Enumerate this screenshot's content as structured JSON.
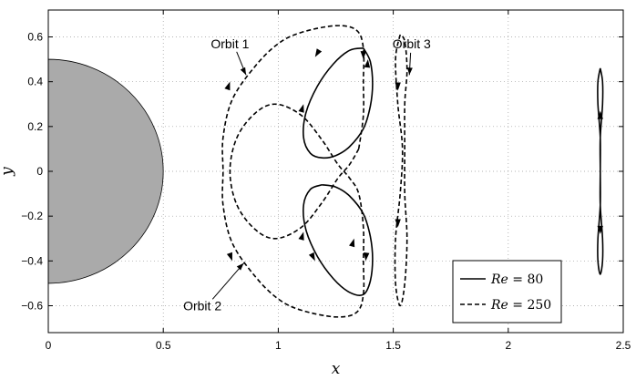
{
  "chart_data": {
    "type": "line",
    "xlabel": "x",
    "ylabel": "y",
    "xlim": [
      0,
      2.5
    ],
    "ylim": [
      -0.72,
      0.72
    ],
    "xticks": [
      "0",
      "0.5",
      "1",
      "1.5",
      "2",
      "2.5"
    ],
    "yticks": [
      "0.6",
      "0.4",
      "0.2",
      "0",
      "-0.2",
      "-0.4",
      "-0.6"
    ],
    "grid": true,
    "obstacle": {
      "center": [
        0,
        0
      ],
      "radius": 0.5,
      "fill": "#aaaaaa"
    },
    "legend": {
      "placement": "bottom-right",
      "entries": [
        {
          "style": "solid",
          "prefix": "Re",
          "value": " = 80"
        },
        {
          "style": "dashed",
          "prefix": "Re",
          "value": " = 250"
        }
      ]
    },
    "annotations": [
      {
        "text": "Orbit 1",
        "label_at": [
          0.79,
          0.57
        ],
        "arrow_to": [
          0.86,
          0.43
        ]
      },
      {
        "text": "Orbit 2",
        "label_at": [
          0.67,
          -0.6
        ],
        "arrow_to": [
          0.85,
          -0.41
        ]
      },
      {
        "text": "Orbit 3",
        "label_at": [
          1.58,
          0.57
        ],
        "arrow_to": [
          1.57,
          0.43
        ]
      }
    ],
    "series": [
      {
        "style": "solid",
        "segments": [
          [
            [
              1.37,
              0.55
            ],
            [
              1.31,
              0.54
            ],
            [
              1.24,
              0.48
            ],
            [
              1.17,
              0.38
            ],
            [
              1.12,
              0.26
            ],
            [
              1.11,
              0.15
            ],
            [
              1.14,
              0.08
            ],
            [
              1.19,
              0.06
            ],
            [
              1.25,
              0.07
            ],
            [
              1.31,
              0.11
            ],
            [
              1.37,
              0.19
            ],
            [
              1.4,
              0.29
            ],
            [
              1.41,
              0.39
            ],
            [
              1.4,
              0.49
            ],
            [
              1.37,
              0.55
            ]
          ],
          [
            [
              1.19,
              -0.06
            ],
            [
              1.14,
              -0.08
            ],
            [
              1.11,
              -0.15
            ],
            [
              1.12,
              -0.26
            ],
            [
              1.17,
              -0.38
            ],
            [
              1.24,
              -0.48
            ],
            [
              1.31,
              -0.54
            ],
            [
              1.37,
              -0.55
            ],
            [
              1.4,
              -0.49
            ],
            [
              1.41,
              -0.39
            ],
            [
              1.4,
              -0.29
            ],
            [
              1.37,
              -0.19
            ],
            [
              1.31,
              -0.11
            ],
            [
              1.25,
              -0.07
            ],
            [
              1.19,
              -0.06
            ]
          ],
          [
            [
              2.4,
              0.46
            ],
            [
              2.41,
              0.4
            ],
            [
              2.41,
              0.3
            ],
            [
              2.4,
              0.15
            ],
            [
              2.4,
              0.0
            ],
            [
              2.4,
              -0.15
            ],
            [
              2.41,
              -0.3
            ],
            [
              2.41,
              -0.4
            ],
            [
              2.4,
              -0.46
            ],
            [
              2.39,
              -0.4
            ],
            [
              2.39,
              -0.3
            ],
            [
              2.4,
              -0.15
            ],
            [
              2.4,
              0.0
            ],
            [
              2.4,
              0.15
            ],
            [
              2.39,
              0.3
            ],
            [
              2.39,
              0.4
            ],
            [
              2.4,
              0.46
            ]
          ]
        ]
      },
      {
        "style": "dashed",
        "segments": [
          [
            [
              1.35,
              0.1
            ],
            [
              1.37,
              0.25
            ],
            [
              1.37,
              0.4
            ],
            [
              1.37,
              0.55
            ],
            [
              1.34,
              0.63
            ],
            [
              1.25,
              0.65
            ],
            [
              1.1,
              0.62
            ],
            [
              1.0,
              0.57
            ],
            [
              0.9,
              0.47
            ],
            [
              0.8,
              0.32
            ],
            [
              0.76,
              0.15
            ],
            [
              0.76,
              0.0
            ],
            [
              0.76,
              -0.15
            ],
            [
              0.8,
              -0.32
            ],
            [
              0.9,
              -0.47
            ],
            [
              1.0,
              -0.57
            ],
            [
              1.1,
              -0.62
            ],
            [
              1.25,
              -0.65
            ],
            [
              1.34,
              -0.63
            ],
            [
              1.37,
              -0.55
            ],
            [
              1.37,
              -0.4
            ],
            [
              1.37,
              -0.25
            ],
            [
              1.35,
              -0.1
            ],
            [
              1.31,
              -0.03
            ],
            [
              1.26,
              0.03
            ],
            [
              1.19,
              0.14
            ],
            [
              1.1,
              0.25
            ],
            [
              0.99,
              0.3
            ],
            [
              0.9,
              0.26
            ],
            [
              0.82,
              0.15
            ],
            [
              0.79,
              0.0
            ],
            [
              0.82,
              -0.15
            ],
            [
              0.9,
              -0.26
            ],
            [
              0.99,
              -0.3
            ],
            [
              1.1,
              -0.25
            ],
            [
              1.19,
              -0.14
            ],
            [
              1.26,
              -0.03
            ],
            [
              1.31,
              0.03
            ],
            [
              1.35,
              0.1
            ]
          ],
          [
            [
              1.53,
              0.61
            ],
            [
              1.51,
              0.5
            ],
            [
              1.52,
              0.3
            ],
            [
              1.54,
              0.1
            ],
            [
              1.53,
              -0.1
            ],
            [
              1.51,
              -0.3
            ],
            [
              1.51,
              -0.5
            ],
            [
              1.53,
              -0.6
            ],
            [
              1.55,
              -0.5
            ],
            [
              1.56,
              -0.3
            ],
            [
              1.55,
              -0.1
            ],
            [
              1.55,
              0.1
            ],
            [
              1.55,
              0.3
            ],
            [
              1.56,
              0.45
            ],
            [
              1.55,
              0.58
            ],
            [
              1.53,
              0.61
            ]
          ]
        ]
      }
    ],
    "arrows": [
      {
        "at": [
          1.16,
          0.51
        ],
        "dir": [
          -0.6,
          -1
        ]
      },
      {
        "at": [
          1.37,
          0.5
        ],
        "dir": [
          0,
          -1
        ]
      },
      {
        "at": [
          1.33,
          -0.3
        ],
        "dir": [
          0.3,
          1
        ]
      },
      {
        "at": [
          1.16,
          -0.4
        ],
        "dir": [
          0.5,
          -1
        ]
      },
      {
        "at": [
          1.39,
          0.5
        ],
        "dir": [
          0.1,
          1
        ]
      },
      {
        "at": [
          1.38,
          -0.4
        ],
        "dir": [
          -0.1,
          -1
        ]
      },
      {
        "at": [
          1.11,
          0.3
        ],
        "dir": [
          0.3,
          1
        ]
      },
      {
        "at": [
          1.11,
          -0.27
        ],
        "dir": [
          0.3,
          1
        ]
      },
      {
        "at": [
          0.8,
          -0.4
        ],
        "dir": [
          0.35,
          -1
        ]
      },
      {
        "at": [
          0.79,
          0.4
        ],
        "dir": [
          0.35,
          1
        ]
      },
      {
        "at": [
          1.52,
          0.36
        ],
        "dir": [
          0,
          -1
        ]
      },
      {
        "at": [
          1.52,
          -0.25
        ],
        "dir": [
          0,
          -1
        ]
      },
      {
        "at": [
          2.4,
          0.27
        ],
        "dir": [
          0,
          1
        ]
      },
      {
        "at": [
          2.4,
          -0.28
        ],
        "dir": [
          0,
          -1
        ]
      }
    ]
  }
}
